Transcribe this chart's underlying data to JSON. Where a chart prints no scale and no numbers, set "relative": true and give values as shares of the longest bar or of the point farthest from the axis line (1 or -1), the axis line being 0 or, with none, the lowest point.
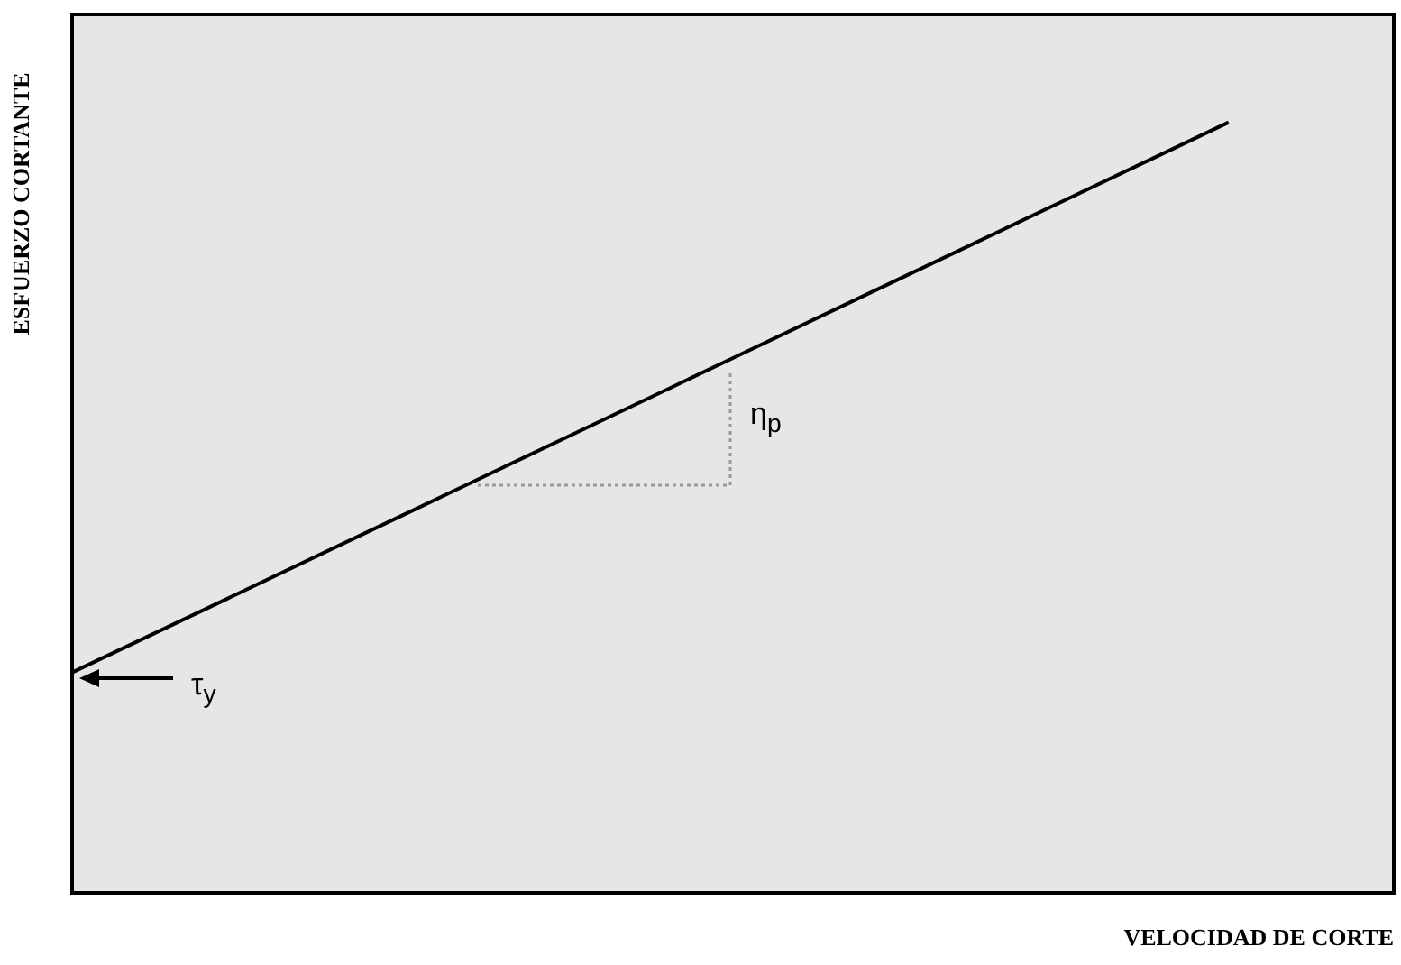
{
  "chart_data": {
    "type": "line",
    "xlabel": "VELOCIDAD DE CORTE",
    "ylabel": "ESFUERZO CORTANTE",
    "relative": true,
    "categories": [
      null,
      null,
      null,
      null,
      null,
      null,
      null,
      null,
      null
    ],
    "series": [
      {
        "color": "#000000",
        "values": [
          0.286,
          0.388,
          0.49,
          0.592,
          0.694,
          0.796,
          0.898,
          1.0,
          null
        ]
      }
    ],
    "annotations": [
      "η$_{p}$",
      "τ$_{y}$"
    ],
    "legend": false,
    "marker": "none",
    "line_style": "solid"
  }
}
